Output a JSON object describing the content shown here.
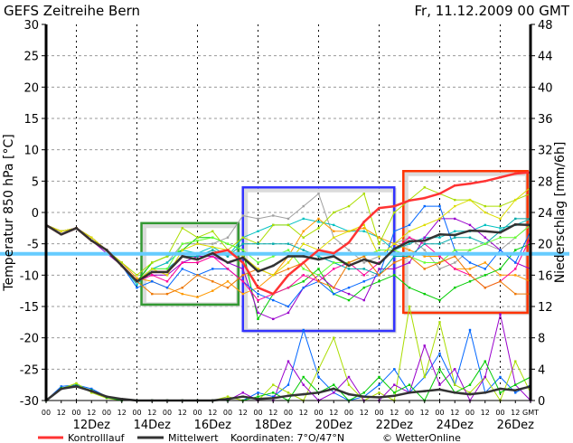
{
  "chart_data": {
    "type": "line",
    "title": "GEFS Zeitreihe Bern",
    "date": "Fr, 11.12.2009 00 GMT",
    "ylabel": "Temperatur 850 hPa [°C]",
    "y2label": "Niederschlag [mm/6h]",
    "ylim": [
      -30,
      30
    ],
    "y2lim": [
      0,
      48
    ],
    "yticks": [
      30,
      25,
      20,
      15,
      10,
      5,
      0,
      -5,
      -10,
      -15,
      -20,
      -25,
      -30
    ],
    "y2ticks": [
      48,
      44,
      40,
      36,
      32,
      28,
      24,
      20,
      16,
      12,
      8,
      4,
      0
    ],
    "x_step_hours": 12,
    "x_hour_labels": [
      "00",
      "12",
      "00",
      "12",
      "00",
      "12",
      "00",
      "12",
      "00",
      "12",
      "00",
      "12",
      "00",
      "12",
      "00",
      "12",
      "00",
      "12",
      "00",
      "12",
      "00",
      "12",
      "00",
      "12",
      "00",
      "12",
      "00",
      "12",
      "00",
      "12",
      "00",
      "12",
      "GMT"
    ],
    "date_labels": [
      {
        "label": "12Dez",
        "index": 3
      },
      {
        "label": "14Dez",
        "index": 7
      },
      {
        "label": "16Dez",
        "index": 11
      },
      {
        "label": "18Dez",
        "index": 15
      },
      {
        "label": "20Dez",
        "index": 19
      },
      {
        "label": "22Dez",
        "index": 23
      },
      {
        "label": "24Dez",
        "index": 27
      },
      {
        "label": "26Dez",
        "index": 31
      }
    ],
    "reference_line": {
      "value": -6.6,
      "color": "#66ccff"
    },
    "highlight_boxes": [
      {
        "color": "#339933",
        "x": [
          6.3,
          12.7
        ],
        "y": [
          -1.7,
          -14.7
        ]
      },
      {
        "color": "#3333ff",
        "x": [
          13.0,
          23.0
        ],
        "y": [
          4.0,
          -18.9
        ]
      },
      {
        "color": "#ff3300",
        "x": [
          23.6,
          31.8
        ],
        "y": [
          6.6,
          -16.0
        ]
      }
    ],
    "control": {
      "name": "Kontrolllauf",
      "color": "#ff3333",
      "values": [
        -2,
        -3.5,
        -2.5,
        -4.5,
        -6,
        -8.5,
        -11,
        -9.5,
        -9.5,
        -7,
        -7.5,
        -6.5,
        -6,
        -8,
        -12,
        -13,
        -10,
        -8,
        -6,
        -6.5,
        -4.8,
        -1.5,
        0.7,
        1,
        1.9,
        2.3,
        3,
        4.3,
        4.6,
        5,
        5.6,
        6.2,
        6.4
      ]
    },
    "mean": {
      "name": "Mittelwert",
      "color": "#333333",
      "values": [
        -2,
        -3.5,
        -2.5,
        -4.5,
        -6,
        -8.5,
        -11,
        -9.5,
        -9.5,
        -7,
        -7.5,
        -6.5,
        -8,
        -7.2,
        -9.4,
        -8.5,
        -7,
        -7,
        -7.5,
        -7,
        -8.5,
        -7.5,
        -8.2,
        -5.8,
        -4.6,
        -4.5,
        -3.5,
        -3.6,
        -2.9,
        -3,
        -3.2,
        -1.9,
        -2
      ]
    },
    "members": [
      {
        "color": "#a0a0a0",
        "values": [
          -2,
          -3,
          -2.5,
          -4,
          -6,
          -8.5,
          -11,
          -9,
          -8,
          -5,
          -5,
          -5,
          -4,
          -0.5,
          -1,
          -0.5,
          -1,
          1,
          3,
          -4,
          -6,
          -8,
          -7,
          -5,
          -4,
          -6,
          -9,
          -8,
          -6,
          -5,
          -6,
          -4,
          -2
        ]
      },
      {
        "color": "#00c0c0",
        "values": [
          -2,
          -3.5,
          -2.5,
          -4.5,
          -6,
          -8.5,
          -11.5,
          -9,
          -8,
          -6,
          -6.5,
          -5.5,
          -7,
          -4,
          -3,
          -2,
          -2,
          -1,
          -1.5,
          -2,
          -3,
          -3,
          -4,
          -6,
          -5,
          -4,
          -4,
          -3,
          -3,
          -2,
          -2.5,
          -2,
          -1
        ]
      },
      {
        "color": "#ff9900",
        "values": [
          -2,
          -3,
          -2.5,
          -4,
          -6,
          -8,
          -10.5,
          -11,
          -12,
          -13,
          -13.5,
          -12.5,
          -11,
          -13,
          -12,
          -10,
          -7,
          -3,
          -1,
          -3,
          -3,
          -2.5,
          -4,
          -5,
          -6,
          -7,
          -7,
          -9,
          -9,
          -8,
          -10,
          -10,
          -11
        ]
      },
      {
        "color": "#00cc00",
        "values": [
          -2,
          -3.5,
          -2.5,
          -4,
          -6,
          -8.5,
          -11,
          -8,
          -7,
          -6,
          -4,
          -4,
          -5,
          -6,
          -17,
          -13,
          -12,
          -11,
          -9,
          -13,
          -14,
          -12,
          -11,
          -10,
          -12,
          -13,
          -14,
          -12,
          -11,
          -10,
          -9,
          -6,
          -5
        ]
      },
      {
        "color": "#9900cc",
        "values": [
          -2,
          -3,
          -2.5,
          -4.5,
          -6.5,
          -8.5,
          -11,
          -10,
          -10,
          -8,
          -7,
          -7,
          -8,
          -9,
          -16,
          -17,
          -16,
          -12,
          -10,
          -12,
          -13,
          -14,
          -9,
          -9,
          -8,
          -4,
          -1,
          -1,
          -2,
          -4,
          -6,
          -8,
          -9
        ]
      },
      {
        "color": "#0066ff",
        "values": [
          -2,
          -3,
          -2.5,
          -4,
          -6,
          -8.5,
          -12,
          -11,
          -12,
          -9,
          -10,
          -9,
          -9,
          -11,
          -13,
          -14,
          -15,
          -12,
          -11,
          -13,
          -12,
          -11,
          -10,
          -3,
          -2,
          1,
          1,
          -6,
          -8,
          -9,
          -6,
          -8,
          -3
        ]
      },
      {
        "color": "#aadd00",
        "values": [
          -2,
          -3,
          -2.5,
          -4,
          -6,
          -8,
          -10,
          -8,
          -7,
          -2.5,
          -4,
          -3,
          -6,
          -4,
          -5,
          -2,
          -2,
          -4,
          -2.5,
          0,
          1,
          3,
          -5,
          0,
          2,
          4,
          3,
          2,
          2,
          1,
          1,
          2,
          3
        ]
      },
      {
        "color": "#ff0099",
        "values": [
          -2,
          -3.5,
          -2.5,
          -4,
          -6,
          -8.5,
          -11,
          -10,
          -11,
          -8,
          -8,
          -7,
          -9,
          -11,
          -14,
          -13,
          -12,
          -10,
          -11,
          -9,
          -8,
          -10,
          -8,
          -6,
          -4,
          -5,
          -7,
          -9,
          -10,
          -12,
          -11,
          -9,
          -4
        ]
      },
      {
        "color": "#00aaaa",
        "values": [
          -2,
          -3,
          -2.5,
          -4,
          -6,
          -8.5,
          -11,
          -9,
          -9,
          -7,
          -7,
          -6,
          -7,
          -5,
          -5,
          -5,
          -5,
          -6,
          -7,
          -8,
          -9,
          -9,
          -10,
          -7,
          -7,
          -5,
          -5,
          -4,
          -4,
          -5,
          -3,
          -1,
          -1
        ]
      },
      {
        "color": "#66ff33",
        "values": [
          -2,
          -3,
          -2.5,
          -4,
          -6,
          -8.5,
          -11,
          -9,
          -9,
          -5,
          -4.5,
          -4,
          -5,
          -6,
          -8,
          -7,
          -6,
          -9,
          -10,
          -8,
          -8,
          -7,
          -6,
          -6,
          -7,
          -8,
          -8,
          -6,
          -6,
          -5,
          -4,
          -4,
          -2
        ]
      },
      {
        "color": "#ee7700",
        "values": [
          -2,
          -3,
          -2.5,
          -4,
          -6,
          -8.5,
          -11,
          -13,
          -13,
          -12,
          -10,
          -11,
          -12,
          -10,
          -9,
          -10,
          -9,
          -8,
          -11,
          -12,
          -8,
          -7,
          -10,
          -8,
          -7,
          -9,
          -8,
          -7,
          -10,
          -12,
          -11,
          -13,
          -13
        ]
      },
      {
        "color": "#dddd00",
        "values": [
          -2,
          -3,
          -2.5,
          -4,
          -6,
          -8.5,
          -11,
          -9,
          -10,
          -6,
          -5,
          -5.5,
          -6,
          -7,
          -9,
          -10,
          -8,
          -5,
          -6,
          -4,
          -3,
          -2,
          -7,
          -5,
          -3,
          -2,
          -1,
          1,
          2,
          0,
          -1,
          2,
          4
        ]
      }
    ],
    "precip_mean": {
      "color": "#333333",
      "values": [
        0,
        1.5,
        1.8,
        1.2,
        0.5,
        0.2,
        0,
        0,
        0,
        0,
        0,
        0,
        0.2,
        0.5,
        0.2,
        0.3,
        0.6,
        0.8,
        1,
        1.5,
        0.8,
        0.5,
        0.4,
        0.6,
        1,
        1.2,
        1.4,
        1,
        0.8,
        1,
        1.5,
        1.3,
        1.8
      ]
    },
    "precip_members": [
      {
        "color": "#0066ff",
        "values": [
          0,
          1.8,
          2,
          1.5,
          0.5,
          0,
          0,
          0,
          0,
          0,
          0,
          0,
          0,
          0,
          1,
          0.5,
          2,
          9,
          3,
          1,
          0,
          0.5,
          2,
          4,
          1,
          3,
          6,
          2,
          9,
          1,
          3,
          1,
          2
        ]
      },
      {
        "color": "#aadd00",
        "values": [
          0,
          1.5,
          2.2,
          1,
          0.3,
          0,
          0,
          0,
          0,
          0,
          0,
          0,
          0.5,
          0,
          0,
          2,
          1,
          0,
          4,
          8,
          2,
          0,
          1,
          0,
          12,
          3,
          10,
          2,
          1,
          3,
          0,
          5,
          1
        ]
      },
      {
        "color": "#9900cc",
        "values": [
          0,
          1.5,
          1.8,
          1.2,
          0.4,
          0,
          0,
          0,
          0,
          0,
          0,
          0,
          0,
          1,
          0,
          0,
          5,
          2,
          0,
          1,
          3,
          0,
          0,
          2,
          1,
          7,
          2,
          4,
          0,
          3,
          11,
          2,
          0
        ]
      },
      {
        "color": "#00cc00",
        "values": [
          0,
          1.6,
          1.9,
          1.3,
          0.4,
          0,
          0,
          0,
          0,
          0,
          0,
          0,
          0,
          0,
          0.5,
          1,
          0,
          3,
          1,
          2,
          0,
          1,
          3,
          1,
          2,
          0,
          4,
          1,
          2,
          5,
          1,
          2,
          3
        ]
      }
    ],
    "legend": {
      "control_label": "Kontrolllauf",
      "mean_label": "Mittelwert",
      "coords": "Koordinaten:  7°O/47°N",
      "credit": "© WetterOnline"
    }
  }
}
